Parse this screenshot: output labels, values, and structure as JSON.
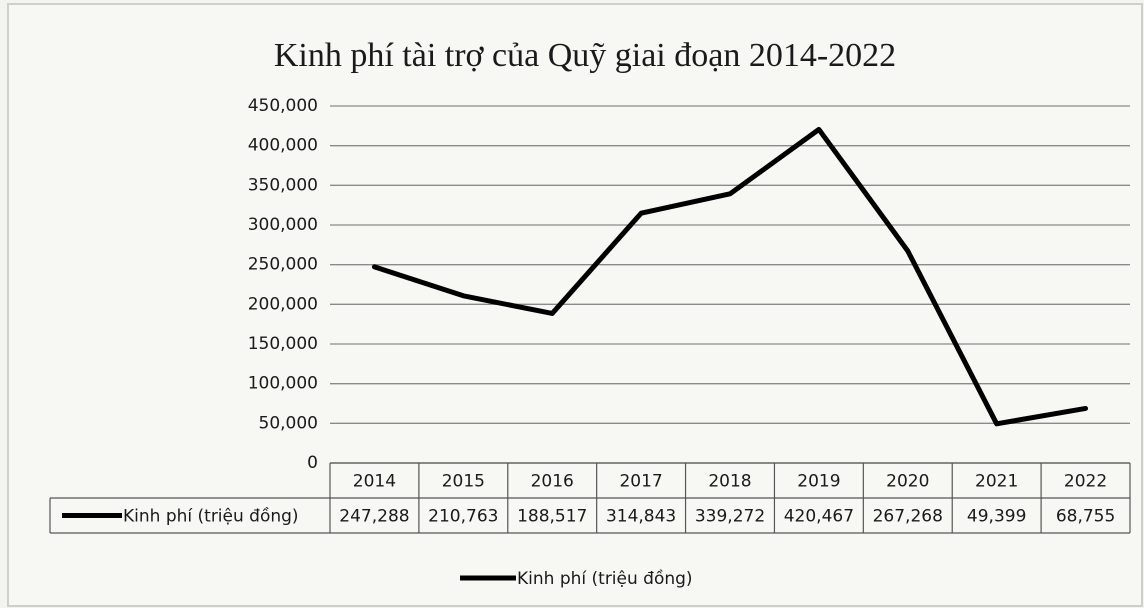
{
  "chart_data": {
    "type": "line",
    "title": "Kinh phí tài trợ của Quỹ giai đoạn 2014-2022",
    "categories": [
      "2014",
      "2015",
      "2016",
      "2017",
      "2018",
      "2019",
      "2020",
      "2021",
      "2022"
    ],
    "series": [
      {
        "name": "Kinh phí (triệu đồng)",
        "color": "#000000",
        "values": [
          247288,
          210763,
          188517,
          314843,
          339272,
          420467,
          267268,
          49399,
          68755
        ],
        "value_labels": [
          "247,288",
          "210,763",
          "188,517",
          "314,843",
          "339,272",
          "420,467",
          "267,268",
          "49,399",
          "68,755"
        ]
      }
    ],
    "ylim": [
      0,
      450000
    ],
    "yticks": [
      0,
      {
        "value": 50000,
        "label": "50,000"
      },
      {
        "value": 100000,
        "label": "100,000"
      },
      {
        "value": 150000,
        "label": "150,000"
      },
      {
        "value": 200000,
        "label": "200,000"
      },
      {
        "value": 250000,
        "label": "250,000"
      },
      {
        "value": 300000,
        "label": "300,000"
      },
      {
        "value": 350000,
        "label": "350,000"
      },
      {
        "value": 400000,
        "label": "400,000"
      },
      {
        "value": 450000,
        "label": "450,000"
      }
    ],
    "grid": true,
    "legend": "bottom"
  }
}
